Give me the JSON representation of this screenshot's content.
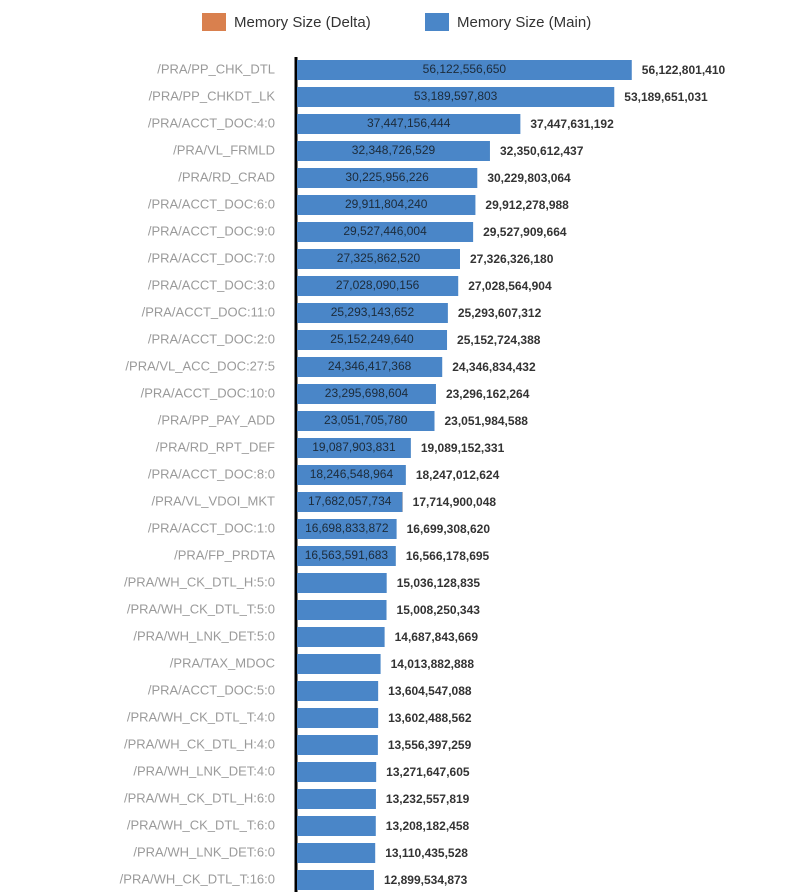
{
  "chart_data": {
    "type": "stacked-bar-horizontal",
    "categories": [
      "/PRA/PP_CHK_DTL",
      "/PRA/PP_CHKDT_LK",
      "/PRA/ACCT_DOC:4:0",
      "/PRA/VL_FRMLD",
      "/PRA/RD_CRAD",
      "/PRA/ACCT_DOC:6:0",
      "/PRA/ACCT_DOC:9:0",
      "/PRA/ACCT_DOC:7:0",
      "/PRA/ACCT_DOC:3:0",
      "/PRA/ACCT_DOC:11:0",
      "/PRA/ACCT_DOC:2:0",
      "/PRA/VL_ACC_DOC:27:5",
      "/PRA/ACCT_DOC:10:0",
      "/PRA/PP_PAY_ADD",
      "/PRA/RD_RPT_DEF",
      "/PRA/ACCT_DOC:8:0",
      "/PRA/VL_VDOI_MKT",
      "/PRA/ACCT_DOC:1:0",
      "/PRA/FP_PRDTA",
      "/PRA/WH_CK_DTL_H:5:0",
      "/PRA/WH_CK_DTL_T:5:0",
      "/PRA/WH_LNK_DET:5:0",
      "/PRA/TAX_MDOC",
      "/PRA/ACCT_DOC:5:0",
      "/PRA/WH_CK_DTL_T:4:0",
      "/PRA/WH_CK_DTL_H:4:0",
      "/PRA/WH_LNK_DET:4:0",
      "/PRA/WH_CK_DTL_H:6:0",
      "/PRA/WH_CK_DTL_T:6:0",
      "/PRA/WH_LNK_DET:6:0",
      "/PRA/WH_CK_DTL_T:16:0"
    ],
    "series": [
      {
        "name": "Memory Size (Main)",
        "color": "#4a86c8",
        "values": [
          56122556650,
          53189597803,
          37447156444,
          32348726529,
          30225956226,
          29911804240,
          29527446004,
          27325862520,
          27028090156,
          25293143652,
          25152249640,
          24346417368,
          23295698604,
          23051705780,
          19087903831,
          18246548964,
          17682057734,
          16698833872,
          16563591683,
          15036128835,
          15008250343,
          14687843669,
          14013882888,
          13604547088,
          13602488562,
          13556397259,
          13271647605,
          13232557819,
          13208182458,
          13110435528,
          12899534873
        ],
        "value_labels": [
          "56,122,556,650",
          "53,189,597,803",
          "37,447,156,444",
          "32,348,726,529",
          "30,225,956,226",
          "29,911,804,240",
          "29,527,446,004",
          "27,325,862,520",
          "27,028,090,156",
          "25,293,143,652",
          "25,152,249,640",
          "24,346,417,368",
          "23,295,698,604",
          "23,051,705,780",
          "19,087,903,831",
          "18,246,548,964",
          "17,682,057,734",
          "16,698,833,872",
          "16,563,591,683",
          null,
          null,
          null,
          null,
          null,
          null,
          null,
          null,
          null,
          null,
          null,
          null
        ]
      },
      {
        "name": "Memory Size (Delta)",
        "color": "#d9804e",
        "values": [
          244760,
          53228,
          474748,
          1885908,
          3846838,
          474748,
          463660,
          463660,
          474748,
          463660,
          474748,
          417064,
          463660,
          278808,
          1248500,
          463660,
          32842314,
          474748,
          2587012,
          0,
          0,
          0,
          0,
          0,
          0,
          0,
          0,
          0,
          0,
          0,
          0
        ]
      }
    ],
    "totals": {
      "values": [
        56122801410,
        53189651031,
        37447631192,
        32350612437,
        30229803064,
        29912278988,
        29527909664,
        27326326180,
        27028564904,
        25293607312,
        25152724388,
        24346834432,
        23296162264,
        23051984588,
        19089152331,
        18247012624,
        17714900048,
        16699308620,
        16566178695,
        15036128835,
        15008250343,
        14687843669,
        14013882888,
        13604547088,
        13602488562,
        13556397259,
        13271647605,
        13232557819,
        13208182458,
        13110435528,
        12899534873
      ],
      "value_labels": [
        "56,122,801,410",
        "53,189,651,031",
        "37,447,631,192",
        "32,350,612,437",
        "30,229,803,064",
        "29,912,278,988",
        "29,527,909,664",
        "27,326,326,180",
        "27,028,564,904",
        "25,293,607,312",
        "25,152,724,388",
        "24,346,834,432",
        "23,296,162,264",
        "23,051,984,588",
        "19,089,152,331",
        "18,247,012,624",
        "17,714,900,048",
        "16,699,308,620",
        "16,566,178,695",
        "15,036,128,835",
        "15,008,250,343",
        "14,687,843,669",
        "14,013,882,888",
        "13,604,547,088",
        "13,602,488,562",
        "13,556,397,259",
        "13,271,647,605",
        "13,232,557,819",
        "13,208,182,458",
        "13,110,435,528",
        "12,899,534,873"
      ]
    },
    "xlim": [
      0,
      57000000000
    ],
    "legend": "top"
  }
}
